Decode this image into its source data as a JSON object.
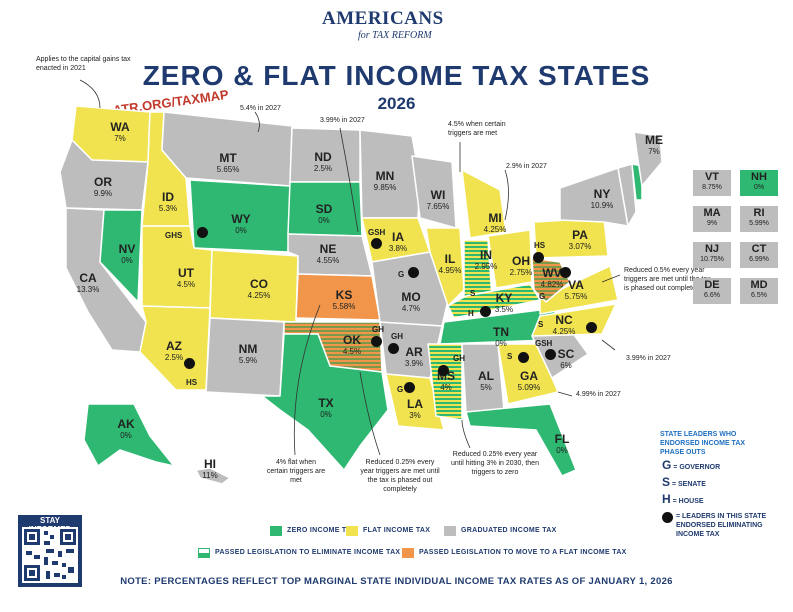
{
  "header": {
    "logo_top": "AMERICANS",
    "logo_sub": "for TAX REFORM",
    "title": "ZERO & FLAT INCOME TAX STATES",
    "year": "2026",
    "taxmap": "ATR.ORG/TAXMAP"
  },
  "colors": {
    "zero": "#2eb872",
    "flat": "#f0e34f",
    "graduated": "#bdbdbd",
    "to_flat": "#f0954a",
    "stroke": "#ffffff",
    "navy": "#1f3a6e"
  },
  "states": [
    {
      "abbr": "WA",
      "rate": "7%"
    },
    {
      "abbr": "OR",
      "rate": "9.9%"
    },
    {
      "abbr": "CA",
      "rate": "13.3%"
    },
    {
      "abbr": "NV",
      "rate": "0%"
    },
    {
      "abbr": "ID",
      "rate": "5.3%"
    },
    {
      "abbr": "MT",
      "rate": "5.65%"
    },
    {
      "abbr": "WY",
      "rate": "0%"
    },
    {
      "abbr": "UT",
      "rate": "4.5%"
    },
    {
      "abbr": "AZ",
      "rate": "2.5%"
    },
    {
      "abbr": "CO",
      "rate": "4.25%"
    },
    {
      "abbr": "NM",
      "rate": "5.9%"
    },
    {
      "abbr": "ND",
      "rate": "2.5%"
    },
    {
      "abbr": "SD",
      "rate": "0%"
    },
    {
      "abbr": "NE",
      "rate": "4.55%"
    },
    {
      "abbr": "KS",
      "rate": "5.58%"
    },
    {
      "abbr": "OK",
      "rate": "4.5%"
    },
    {
      "abbr": "TX",
      "rate": "0%"
    },
    {
      "abbr": "MN",
      "rate": "9.85%"
    },
    {
      "abbr": "IA",
      "rate": "3.8%"
    },
    {
      "abbr": "MO",
      "rate": "4.7%"
    },
    {
      "abbr": "AR",
      "rate": "3.9%"
    },
    {
      "abbr": "LA",
      "rate": "3%"
    },
    {
      "abbr": "WI",
      "rate": "7.65%"
    },
    {
      "abbr": "IL",
      "rate": "4.95%"
    },
    {
      "abbr": "MI",
      "rate": "4.25%"
    },
    {
      "abbr": "IN",
      "rate": "2.95%"
    },
    {
      "abbr": "OH",
      "rate": "2.75%"
    },
    {
      "abbr": "KY",
      "rate": "3.5%"
    },
    {
      "abbr": "TN",
      "rate": "0%"
    },
    {
      "abbr": "MS",
      "rate": "4%"
    },
    {
      "abbr": "AL",
      "rate": "5%"
    },
    {
      "abbr": "GA",
      "rate": "5.09%"
    },
    {
      "abbr": "FL",
      "rate": "0%"
    },
    {
      "abbr": "SC",
      "rate": "6%"
    },
    {
      "abbr": "NC",
      "rate": "4.25%"
    },
    {
      "abbr": "VA",
      "rate": "5.75%"
    },
    {
      "abbr": "WV",
      "rate": "4.82%"
    },
    {
      "abbr": "PA",
      "rate": "3.07%"
    },
    {
      "abbr": "NY",
      "rate": "10.9%"
    },
    {
      "abbr": "ME",
      "rate": "7%"
    },
    {
      "abbr": "AK",
      "rate": "0%"
    },
    {
      "abbr": "HI",
      "rate": "11%"
    }
  ],
  "ne_boxes": [
    {
      "abbr": "VT",
      "rate": "8.75%"
    },
    {
      "abbr": "NH",
      "rate": "0%"
    },
    {
      "abbr": "MA",
      "rate": "9%"
    },
    {
      "abbr": "RI",
      "rate": "5.99%"
    },
    {
      "abbr": "NJ",
      "rate": "10.75%"
    },
    {
      "abbr": "CT",
      "rate": "6.99%"
    },
    {
      "abbr": "DE",
      "rate": "6.6%"
    },
    {
      "abbr": "MD",
      "rate": "6.5%"
    }
  ],
  "callouts": {
    "capital_gains": "Applies to the capital gains tax enacted in 2021",
    "mt_2027": "5.4% in 2027",
    "nd_2027": "3.99% in 2027",
    "wi_triggers": "4.5% when certain triggers are met",
    "oh_2027": "2.9% in 2027",
    "va_reduce": "Reduced 0.5% every year triggers are met until the tax is phased out completely",
    "nc_2027": "3.99% in 2027",
    "ga_2027": "4.99% in 2027",
    "ks_flat": "4% flat when certain triggers are met",
    "ok_reduce": "Reduced 0.25% every year triggers are met until the tax is phased out completely",
    "ms_reduce": "Reduced 0.25% every year until hitting 3% in 2030, then triggers to zero"
  },
  "leader_letters": {
    "id": "GHS",
    "ia": "GSH",
    "wv": "G",
    "ok": "GH",
    "ar": "GH",
    "mo": "G",
    "la": "G",
    "ms": "GH",
    "ky_s": "S",
    "ky_h": "H",
    "oh": "HS",
    "nc": "S",
    "sc": "GSH",
    "ga": "S",
    "az": "HS"
  },
  "legend": {
    "zero": "ZERO INCOME TAX",
    "flat": "FLAT INCOME TAX",
    "graduated": "GRADUATED INCOME TAX",
    "eliminate": "PASSED LEGISLATION TO ELIMINATE INCOME TAX",
    "to_flat": "PASSED LEGISLATION TO MOVE TO A FLAT INCOME TAX"
  },
  "leaders": {
    "title": "STATE LEADERS WHO ENDORSED INCOME TAX PHASE OUTS",
    "g_letter": "G",
    "g_label": "= GOVERNOR",
    "s_letter": "S",
    "s_label": "= SENATE",
    "h_letter": "H",
    "h_label": "= HOUSE",
    "dot_label": "= LEADERS IN THIS STATE ENDORSED ELIMINATING INCOME TAX"
  },
  "stay_informed": "STAY INFORMED",
  "footer": "NOTE: PERCENTAGES REFLECT TOP MARGINAL STATE INDIVIDUAL INCOME TAX RATES AS OF JANUARY 1, 2026"
}
